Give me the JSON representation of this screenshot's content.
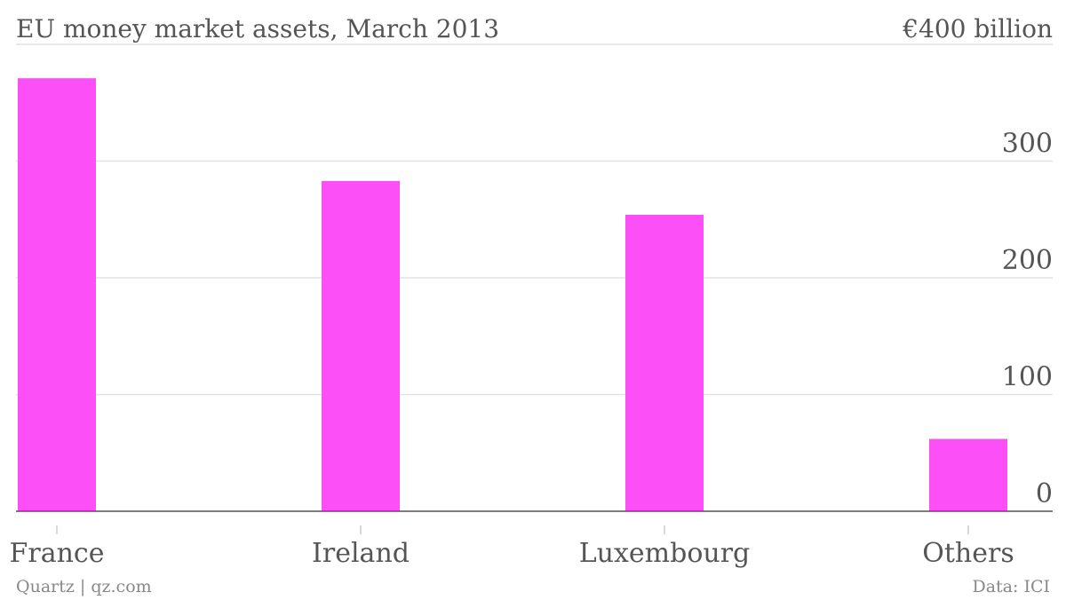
{
  "chart_data": {
    "type": "bar",
    "title": "EU money market assets, March 2013",
    "categories": [
      "France",
      "Ireland",
      "Luxembourg",
      "Others"
    ],
    "values": [
      371,
      283,
      254,
      62
    ],
    "color": "#fc4ff8",
    "ylim": [
      0,
      400
    ],
    "yticks": [
      0,
      100,
      200,
      300,
      {
        "value": 400,
        "label": "€400 billion"
      }
    ],
    "grid": true,
    "source": "Data: ICI",
    "credit": "Quartz | qz.com"
  }
}
